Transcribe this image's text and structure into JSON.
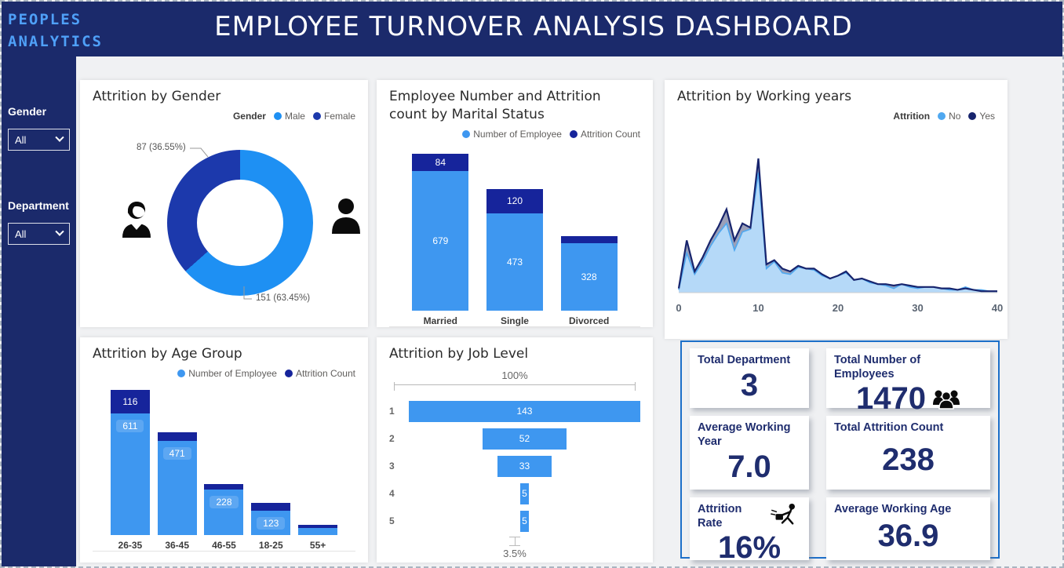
{
  "header": {
    "brand_line1": "PEOPLES",
    "brand_line2": "ANALYTICS",
    "title": "EMPLOYEE TURNOVER ANALYSIS DASHBOARD"
  },
  "sidebar": {
    "filters": [
      {
        "label": "Gender",
        "value": "All"
      },
      {
        "label": "Department",
        "value": "All"
      }
    ]
  },
  "colors": {
    "navy_header": "#1B2A6B",
    "brand_text": "#4FA0F8",
    "series_light_blue": "#3E97F0",
    "series_dark_blue": "#16249B",
    "kpi_text": "#1F2D6E",
    "kpi_panel_border": "#1C6FC9"
  },
  "kpi_panel": {
    "cards": [
      {
        "title": "Total Department",
        "value": "3"
      },
      {
        "title": "Total Number of Employees",
        "value": "1470",
        "icon": "people-group-icon"
      },
      {
        "title": "Average Working Year",
        "value": "7.0"
      },
      {
        "title": "Total Attrition Count",
        "value": "238"
      },
      {
        "title": "Attrition Rate",
        "value": "16%",
        "icon": "employee-leaving-icon"
      },
      {
        "title": "Average Working Age",
        "value": "36.9"
      }
    ]
  },
  "chart_data": [
    {
      "id": "attrition-by-gender",
      "type": "pie",
      "donut": true,
      "title": "Attrition by Gender",
      "legend_title": "Gender",
      "legend_position": "top-right",
      "slices": [
        {
          "label": "Male",
          "value": 151,
          "pct": 63.45,
          "color": "#1E90F3",
          "data_label": "151 (63.45%)"
        },
        {
          "label": "Female",
          "value": 87,
          "pct": 36.55,
          "color": "#1C39AC",
          "data_label": "87 (36.55%)"
        }
      ]
    },
    {
      "id": "employee-number-and-attrition-by-marital-status",
      "type": "bar",
      "stacked": true,
      "title": "Employee Number and Attrition count by Marital Status",
      "categories": [
        "Married",
        "Single",
        "Divorced"
      ],
      "series": [
        {
          "name": "Number of Employee",
          "color": "#3E97F0",
          "values": [
            679,
            473,
            328
          ],
          "labels": [
            "679",
            "473",
            "328"
          ]
        },
        {
          "name": "Attrition Count",
          "color": "#16249B",
          "values": [
            84,
            120,
            34
          ],
          "labels": [
            "84",
            "120",
            ""
          ],
          "note": "Divorced attrition segment is unlabeled in the visual; 34 estimated from segment height"
        }
      ],
      "ylim": [
        0,
        763
      ],
      "legend_position": "top-right"
    },
    {
      "id": "attrition-by-working-years",
      "type": "area",
      "title": "Attrition by Working years",
      "legend_title": "Attrition",
      "legend_position": "top-right",
      "x_min": 0,
      "x_max": 40,
      "xticks": [
        0,
        10,
        20,
        30,
        40
      ],
      "note": "y-axis unlabeled; values are estimated relative heights (0-100) read from the plot",
      "x": [
        0,
        1,
        2,
        3,
        4,
        5,
        6,
        7,
        8,
        9,
        10,
        11,
        12,
        13,
        14,
        15,
        16,
        17,
        18,
        19,
        20,
        21,
        22,
        23,
        24,
        25,
        26,
        27,
        28,
        29,
        30,
        31,
        32,
        33,
        34,
        35,
        36,
        37,
        38,
        39,
        40
      ],
      "series": [
        {
          "name": "No",
          "color": "#4FA8F0",
          "fill": "#B5D9F8",
          "values": [
            2,
            28,
            13,
            22,
            33,
            42,
            49,
            30,
            43,
            45,
            85,
            17,
            22,
            14,
            13,
            18,
            17,
            16,
            12,
            10,
            12,
            14,
            9,
            10,
            7,
            6,
            5,
            3,
            6,
            4,
            3,
            4,
            4,
            3,
            2,
            2,
            4,
            2,
            2,
            1,
            1
          ]
        },
        {
          "name": "Yes",
          "color": "#17246D",
          "fill": "#9BA0B8",
          "values": [
            3,
            37,
            15,
            25,
            37,
            47,
            59,
            37,
            49,
            46,
            95,
            20,
            23,
            17,
            15,
            19,
            17,
            17,
            13,
            10,
            12,
            15,
            9,
            10,
            8,
            6,
            6,
            5,
            6,
            5,
            4,
            4,
            4,
            3,
            3,
            2,
            3,
            2,
            1,
            1,
            1
          ]
        }
      ]
    },
    {
      "id": "attrition-by-age-group",
      "type": "bar",
      "stacked": true,
      "title": "Attrition by Age Group",
      "categories": [
        "26-35",
        "36-45",
        "46-55",
        "18-25",
        "55+"
      ],
      "series": [
        {
          "name": "Number of Employee",
          "color": "#3E97F0",
          "values": [
            611,
            471,
            228,
            123,
            37
          ],
          "labels": [
            "611",
            "471",
            "228",
            "123",
            ""
          ],
          "note": "55+ employee count unlabeled; 37 estimated from segment height"
        },
        {
          "name": "Attrition Count",
          "color": "#16249B",
          "values": [
            116,
            43,
            26,
            38,
            15
          ],
          "labels": [
            "116",
            "",
            "",
            "",
            ""
          ],
          "note": "Only 26-35 attrition labeled; others estimated from segment heights"
        }
      ],
      "ylim": [
        0,
        727
      ],
      "legend_position": "top-right"
    },
    {
      "id": "attrition-by-job-level",
      "type": "funnel",
      "title": "Attrition by Job Level",
      "categories": [
        "1",
        "2",
        "3",
        "4",
        "5"
      ],
      "values": [
        143,
        52,
        33,
        5,
        5
      ],
      "labels": [
        "143",
        "52",
        "33",
        "5",
        "5"
      ],
      "color": "#3E97F0",
      "top_label": "100%",
      "bottom_label": "3.5%"
    }
  ]
}
